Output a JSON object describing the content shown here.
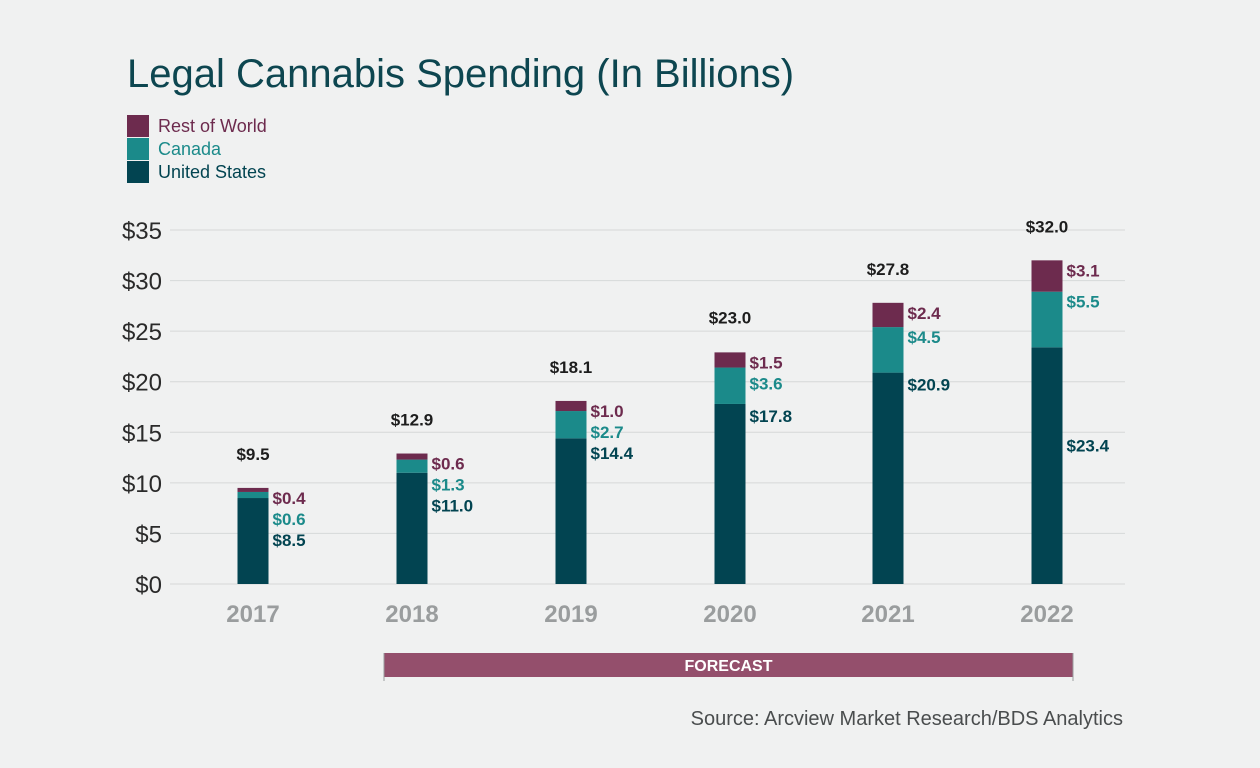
{
  "chart_data": {
    "type": "bar",
    "stacked": true,
    "title": "Legal Cannabis Spending (In Billions)",
    "categories": [
      "2017",
      "2018",
      "2019",
      "2020",
      "2021",
      "2022"
    ],
    "series": [
      {
        "name": "United States",
        "values": [
          8.5,
          11.0,
          14.4,
          17.8,
          20.9,
          23.4
        ],
        "labels": [
          "$8.5",
          "$11.0",
          "$14.4",
          "$17.8",
          "$20.9",
          "$23.4"
        ],
        "color": "#024451"
      },
      {
        "name": "Canada",
        "values": [
          0.6,
          1.3,
          2.7,
          3.6,
          4.5,
          5.5
        ],
        "labels": [
          "$0.6",
          "$1.3",
          "$2.7",
          "$3.6",
          "$4.5",
          "$5.5"
        ],
        "color": "#1b8a8a"
      },
      {
        "name": "Rest of World",
        "values": [
          0.4,
          0.6,
          1.0,
          1.5,
          2.4,
          3.1
        ],
        "labels": [
          "$0.4",
          "$0.6",
          "$1.0",
          "$1.5",
          "$2.4",
          "$3.1"
        ],
        "color": "#6d2b4e"
      }
    ],
    "totals": [
      9.5,
      12.9,
      18.1,
      23.0,
      27.8,
      32.0
    ],
    "total_labels": [
      "$9.5",
      "$12.9",
      "$18.1",
      "$23.0",
      "$27.8",
      "$32.0"
    ],
    "ylim": [
      0,
      35
    ],
    "yticks": [
      0,
      5,
      10,
      15,
      20,
      25,
      30,
      35
    ],
    "ytick_labels": [
      "$0",
      "$5",
      "$10",
      "$15",
      "$20",
      "$25",
      "$30",
      "$35"
    ],
    "grid": true,
    "legend_position": "top-left",
    "legend_order": [
      "Rest of World",
      "Canada",
      "United States"
    ],
    "forecast": {
      "label": "FORECAST",
      "from": "2018",
      "to": "2022",
      "color": "#944f6c"
    },
    "source": "Source: Arcview Market Research/BDS Analytics"
  },
  "colors": {
    "background": "#f0f1f1",
    "title": "#0d4650",
    "axis_text": "#2a2a2a",
    "category_text": "#9a9d9e",
    "gridline": "#d6d8d8",
    "total_text": "#1d1d1d"
  }
}
